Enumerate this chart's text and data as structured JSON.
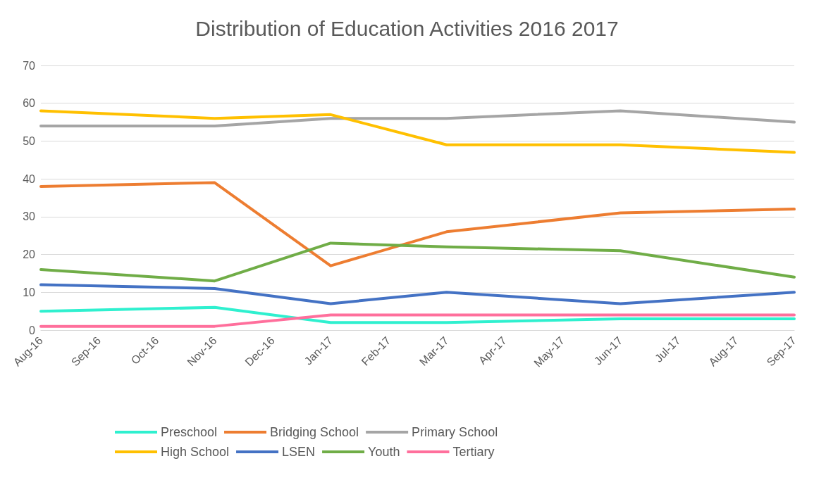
{
  "chart_data": {
    "type": "line",
    "title": "Distribution of Education Activities 2016 2017",
    "categories": [
      "Aug-16",
      "Sep-16",
      "Oct-16",
      "Nov-16",
      "Dec-16",
      "Jan-17",
      "Feb-17",
      "Mar-17",
      "Apr-17",
      "May-17",
      "Jun-17",
      "Jul-17",
      "Aug-17",
      "Sep-17"
    ],
    "series": [
      {
        "name": "Preschool",
        "color": "#2ff0cf",
        "values": [
          5,
          null,
          null,
          6,
          null,
          2,
          null,
          2,
          null,
          null,
          3,
          null,
          null,
          3
        ]
      },
      {
        "name": "Bridging School",
        "color": "#ed7d31",
        "values": [
          38,
          null,
          null,
          39,
          null,
          17,
          null,
          26,
          null,
          null,
          31,
          null,
          null,
          32
        ]
      },
      {
        "name": "Primary School",
        "color": "#a5a5a5",
        "values": [
          54,
          null,
          null,
          54,
          null,
          56,
          null,
          56,
          null,
          null,
          58,
          null,
          null,
          55
        ]
      },
      {
        "name": "High School",
        "color": "#ffc000",
        "values": [
          58,
          null,
          null,
          56,
          null,
          57,
          null,
          49,
          null,
          null,
          49,
          null,
          null,
          47
        ]
      },
      {
        "name": "LSEN",
        "color": "#4472c4",
        "values": [
          12,
          null,
          null,
          11,
          null,
          7,
          null,
          10,
          null,
          null,
          7,
          null,
          null,
          10
        ]
      },
      {
        "name": "Youth",
        "color": "#70ad47",
        "values": [
          16,
          null,
          null,
          13,
          null,
          23,
          null,
          22,
          null,
          null,
          21,
          null,
          null,
          14
        ]
      },
      {
        "name": "Tertiary",
        "color": "#ff6f9c",
        "values": [
          1,
          null,
          null,
          1,
          null,
          4,
          null,
          4,
          null,
          null,
          4,
          null,
          null,
          4
        ]
      }
    ],
    "ylim": [
      0,
      70
    ],
    "yticks": [
      0,
      10,
      20,
      30,
      40,
      50,
      60,
      70
    ],
    "grid": "y",
    "legend": "bottom",
    "marker": "none",
    "line_style": "solid"
  }
}
